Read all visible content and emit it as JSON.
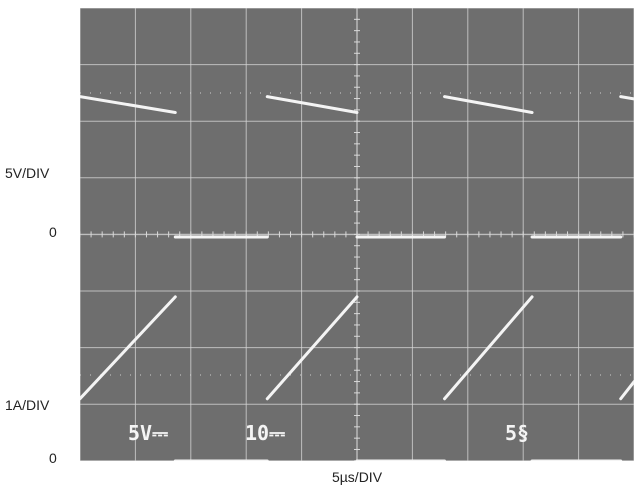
{
  "chart_data": {
    "type": "line",
    "xlabel": "5µs/DIV",
    "x_div_us": 5,
    "time_range_us": [
      0,
      50
    ],
    "left_labels": {
      "top_scale": "5V/DIV",
      "top_zero": "0",
      "bottom_scale": "1A/DIV",
      "bottom_zero": "0"
    },
    "scope_readout": [
      "5V⎓",
      "10⎓",
      "5§"
    ],
    "grid": true,
    "colors": {
      "screen": "#6e6e6e",
      "grid": "#d9d9d9",
      "trace": "#f4f4f4"
    },
    "series": [
      {
        "channel": "voltage",
        "unit": "V",
        "volts_per_div": 5,
        "segments": [
          {
            "x": [
              0,
              8.6
            ],
            "y": [
              12.4,
              11.0
            ]
          },
          {
            "x": [
              8.6,
              16.9
            ],
            "y": [
              0,
              0
            ]
          },
          {
            "x": [
              16.9,
              25.0
            ],
            "y": [
              12.4,
              11.0
            ]
          },
          {
            "x": [
              25.0,
              32.9
            ],
            "y": [
              0,
              0
            ]
          },
          {
            "x": [
              32.9,
              40.8
            ],
            "y": [
              12.4,
              11.0
            ]
          },
          {
            "x": [
              40.8,
              48.8
            ],
            "y": [
              0,
              0
            ]
          },
          {
            "x": [
              48.8,
              50
            ],
            "y": [
              12.4,
              12.2
            ]
          }
        ]
      },
      {
        "channel": "current",
        "unit": "A",
        "amps_per_div": 1,
        "segments": [
          {
            "x": [
              0,
              8.6
            ],
            "y": [
              1.1,
              2.9
            ]
          },
          {
            "x": [
              8.6,
              16.9
            ],
            "y": [
              0,
              0
            ]
          },
          {
            "x": [
              16.9,
              25.0
            ],
            "y": [
              1.1,
              2.9
            ]
          },
          {
            "x": [
              25.0,
              32.9
            ],
            "y": [
              0,
              0
            ]
          },
          {
            "x": [
              32.9,
              40.8
            ],
            "y": [
              1.1,
              2.9
            ]
          },
          {
            "x": [
              40.8,
              48.8
            ],
            "y": [
              0,
              0
            ]
          },
          {
            "x": [
              48.8,
              50
            ],
            "y": [
              1.1,
              1.4
            ]
          }
        ]
      }
    ]
  }
}
